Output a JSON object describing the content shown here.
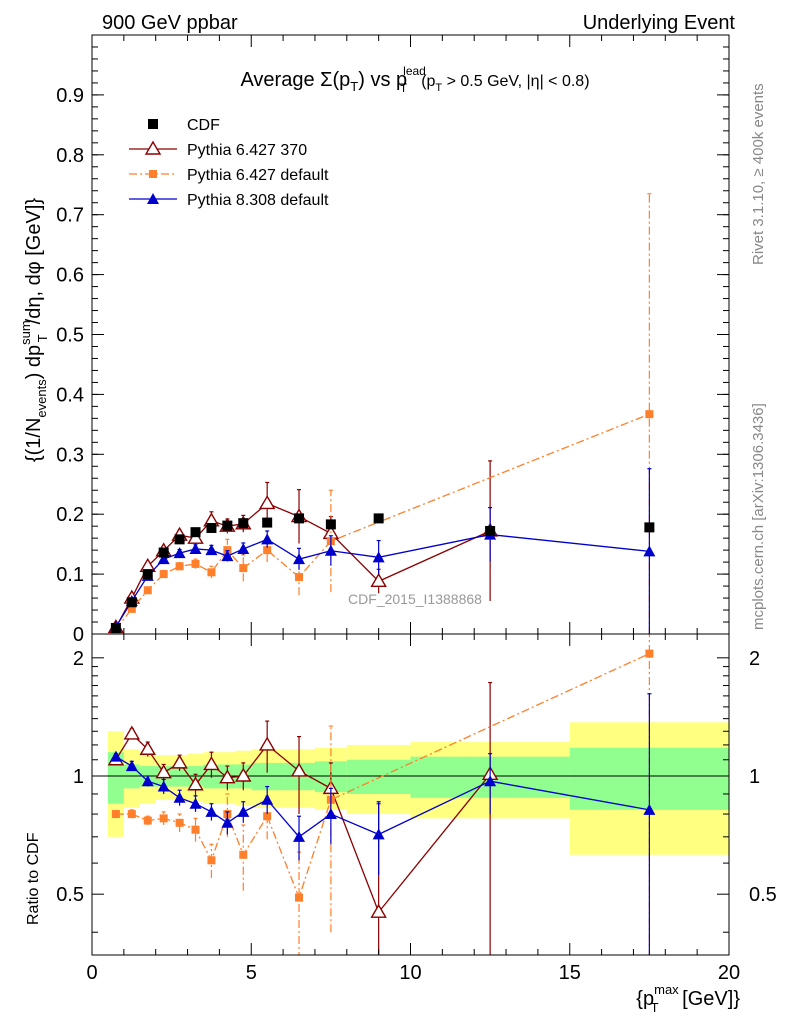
{
  "header": {
    "left": "900 GeV ppbar",
    "right": "Underlying Event"
  },
  "side_labels": {
    "rivet": "Rivet 3.1.10, ≥ 400k events",
    "mcplots": "mcplots.cern.ch [arXiv:1306.3436]"
  },
  "watermark": "CDF_2015_I1388868",
  "chart_data": [
    {
      "type": "scatter",
      "panel": "main",
      "title": "Average Σ(pT) vs pTlead (pT > 0.5 GeV, |η| < 0.8)",
      "title_parts": {
        "pre": "Average ",
        "sigma": "Σ(p",
        "sub_T": "T",
        "post_sigma": ") vs p",
        "sup_lead": "lead",
        "sub_T2": "T",
        "cut": "(p",
        "sub_T3": "T",
        "cut_rest": " > 0.5 GeV, |η| < 0.8)"
      },
      "ylabel": "{(1/Nevents) dpTsum/dη, dφ [GeV]}",
      "ylabel_parts": {
        "a": "{(1/N",
        "sub_events": "events",
        "b": ") dp",
        "sup_sum": "sum",
        "sub_T": "T",
        "c": "/dη, dφ [GeV]}"
      },
      "xlim": [
        0,
        20
      ],
      "ylim": [
        0,
        1.0
      ],
      "y_ticks": [
        0,
        0.1,
        0.2,
        0.3,
        0.4,
        0.5,
        0.6,
        0.7,
        0.8,
        0.9
      ],
      "y_tick_labels": [
        "0",
        "0.1",
        "0.2",
        "0.3",
        "0.4",
        "0.5",
        "0.6",
        "0.7",
        "0.8",
        "0.9"
      ],
      "legend_position": "top-left",
      "series": [
        {
          "name": "CDF",
          "marker": "square",
          "color": "#000000",
          "x": [
            0.75,
            1.25,
            1.75,
            2.25,
            2.75,
            3.25,
            3.75,
            4.25,
            4.75,
            5.5,
            6.5,
            7.5,
            9.0,
            12.5,
            17.5
          ],
          "y": [
            0.01,
            0.053,
            0.1,
            0.136,
            0.158,
            0.17,
            0.177,
            0.181,
            0.185,
            0.186,
            0.193,
            0.183,
            0.193,
            0.172,
            0.178
          ]
        },
        {
          "name": "Pythia 6.427 370",
          "marker": "open-triangle",
          "color": "#8b0000",
          "line": "solid",
          "x": [
            0.75,
            1.25,
            1.75,
            2.25,
            2.75,
            3.25,
            3.75,
            4.25,
            4.75,
            5.5,
            6.5,
            7.5,
            9.0,
            12.5
          ],
          "y": [
            0.011,
            0.06,
            0.113,
            0.139,
            0.165,
            0.16,
            0.189,
            0.18,
            0.184,
            0.218,
            0.196,
            0.168,
            0.088,
            0.172
          ],
          "yerr": [
            0.002,
            0.004,
            0.005,
            0.007,
            0.008,
            0.01,
            0.015,
            0.012,
            0.014,
            0.035,
            0.045,
            0.028,
            0.02,
            0.117
          ]
        },
        {
          "name": "Pythia 6.427 default",
          "marker": "small-square",
          "color": "#ff7f2a",
          "line": "dash-dot",
          "x": [
            0.75,
            1.25,
            1.75,
            2.25,
            2.75,
            3.25,
            3.75,
            4.25,
            4.75,
            5.5,
            6.5,
            7.5,
            17.5
          ],
          "y": [
            0.008,
            0.042,
            0.073,
            0.1,
            0.113,
            0.117,
            0.103,
            0.14,
            0.11,
            0.14,
            0.095,
            0.155,
            0.367
          ],
          "yerr": [
            0.001,
            0.003,
            0.004,
            0.006,
            0.006,
            0.008,
            0.01,
            0.018,
            0.022,
            0.02,
            0.03,
            0.085,
            0.368
          ]
        },
        {
          "name": "Pythia 8.308 default",
          "marker": "triangle",
          "color": "#0000cc",
          "line": "solid",
          "x": [
            0.75,
            1.25,
            1.75,
            2.25,
            2.75,
            3.25,
            3.75,
            4.25,
            4.75,
            5.5,
            6.5,
            7.5,
            9.0,
            12.5,
            17.5
          ],
          "y": [
            0.012,
            0.055,
            0.097,
            0.125,
            0.135,
            0.142,
            0.14,
            0.13,
            0.142,
            0.158,
            0.125,
            0.139,
            0.128,
            0.166,
            0.138
          ],
          "yerr": [
            0.001,
            0.003,
            0.004,
            0.005,
            0.006,
            0.007,
            0.008,
            0.009,
            0.01,
            0.014,
            0.018,
            0.025,
            0.028,
            0.045,
            0.138
          ]
        }
      ]
    },
    {
      "type": "scatter",
      "panel": "ratio",
      "ylabel": "Ratio to CDF",
      "xlabel": "{pTmax [GeV]}",
      "xlabel_parts": {
        "a": "{p",
        "sup_max": "max",
        "sub_T": "T",
        "b": " [GeV]}"
      },
      "xlim": [
        0,
        20
      ],
      "ylim": [
        0.35,
        2.3
      ],
      "x_ticks": [
        0,
        5,
        10,
        15,
        20
      ],
      "x_tick_labels": [
        "0",
        "5",
        "10",
        "15",
        "20"
      ],
      "y_ticks": [
        0.5,
        1,
        2
      ],
      "y_tick_labels": [
        "0.5",
        "1",
        "2"
      ],
      "bands": {
        "edges": [
          0.5,
          1.0,
          1.5,
          2.0,
          2.5,
          3.0,
          3.5,
          4.0,
          4.5,
          5.0,
          6.0,
          7.0,
          8.0,
          10.0,
          15.0,
          20.0
        ],
        "green": [
          0.15,
          0.07,
          0.06,
          0.06,
          0.06,
          0.06,
          0.07,
          0.07,
          0.07,
          0.08,
          0.08,
          0.09,
          0.1,
          0.12,
          0.18
        ],
        "yellow": [
          0.3,
          0.17,
          0.15,
          0.13,
          0.13,
          0.14,
          0.15,
          0.15,
          0.16,
          0.17,
          0.17,
          0.18,
          0.2,
          0.22,
          0.37
        ],
        "green_color": "#90ff90",
        "yellow_color": "#ffff80"
      },
      "series": [
        {
          "name": "Pythia 6.427 370",
          "marker": "open-triangle",
          "color": "#8b0000",
          "line": "solid",
          "x": [
            0.75,
            1.25,
            1.75,
            2.25,
            2.75,
            3.25,
            3.75,
            4.25,
            4.75,
            5.5,
            6.5,
            7.5,
            9.0,
            12.5
          ],
          "y": [
            1.1,
            1.28,
            1.17,
            1.02,
            1.08,
            0.95,
            1.07,
            0.99,
            1.0,
            1.2,
            1.03,
            0.93,
            0.45,
            1.01
          ],
          "yerr": [
            0.02,
            0.04,
            0.05,
            0.05,
            0.05,
            0.06,
            0.08,
            0.07,
            0.08,
            0.18,
            0.23,
            0.15,
            0.4,
            0.72
          ]
        },
        {
          "name": "Pythia 6.427 default",
          "marker": "small-square",
          "color": "#ff7f2a",
          "line": "dash-dot",
          "x": [
            0.75,
            1.25,
            1.75,
            2.25,
            2.75,
            3.25,
            3.75,
            4.25,
            4.75,
            5.5,
            6.5,
            7.5,
            17.5
          ],
          "y": [
            0.8,
            0.8,
            0.77,
            0.78,
            0.76,
            0.73,
            0.61,
            0.8,
            0.63,
            0.79,
            0.49,
            0.87,
            2.05
          ],
          "yerr": [
            0.01,
            0.02,
            0.02,
            0.03,
            0.04,
            0.05,
            0.06,
            0.1,
            0.12,
            0.1,
            0.15,
            0.47,
            2.0
          ]
        },
        {
          "name": "Pythia 8.308 default",
          "marker": "triangle",
          "color": "#0000cc",
          "line": "solid",
          "x": [
            0.75,
            1.25,
            1.75,
            2.25,
            2.75,
            3.25,
            3.75,
            4.25,
            4.75,
            5.5,
            6.5,
            7.5,
            9.0,
            12.5,
            17.5
          ],
          "y": [
            1.12,
            1.06,
            0.97,
            0.94,
            0.88,
            0.85,
            0.81,
            0.76,
            0.81,
            0.87,
            0.7,
            0.8,
            0.71,
            0.97,
            0.82
          ],
          "yerr": [
            0.02,
            0.03,
            0.03,
            0.04,
            0.04,
            0.04,
            0.04,
            0.05,
            0.05,
            0.07,
            0.09,
            0.13,
            0.15,
            0.17,
            0.8
          ]
        }
      ]
    }
  ]
}
